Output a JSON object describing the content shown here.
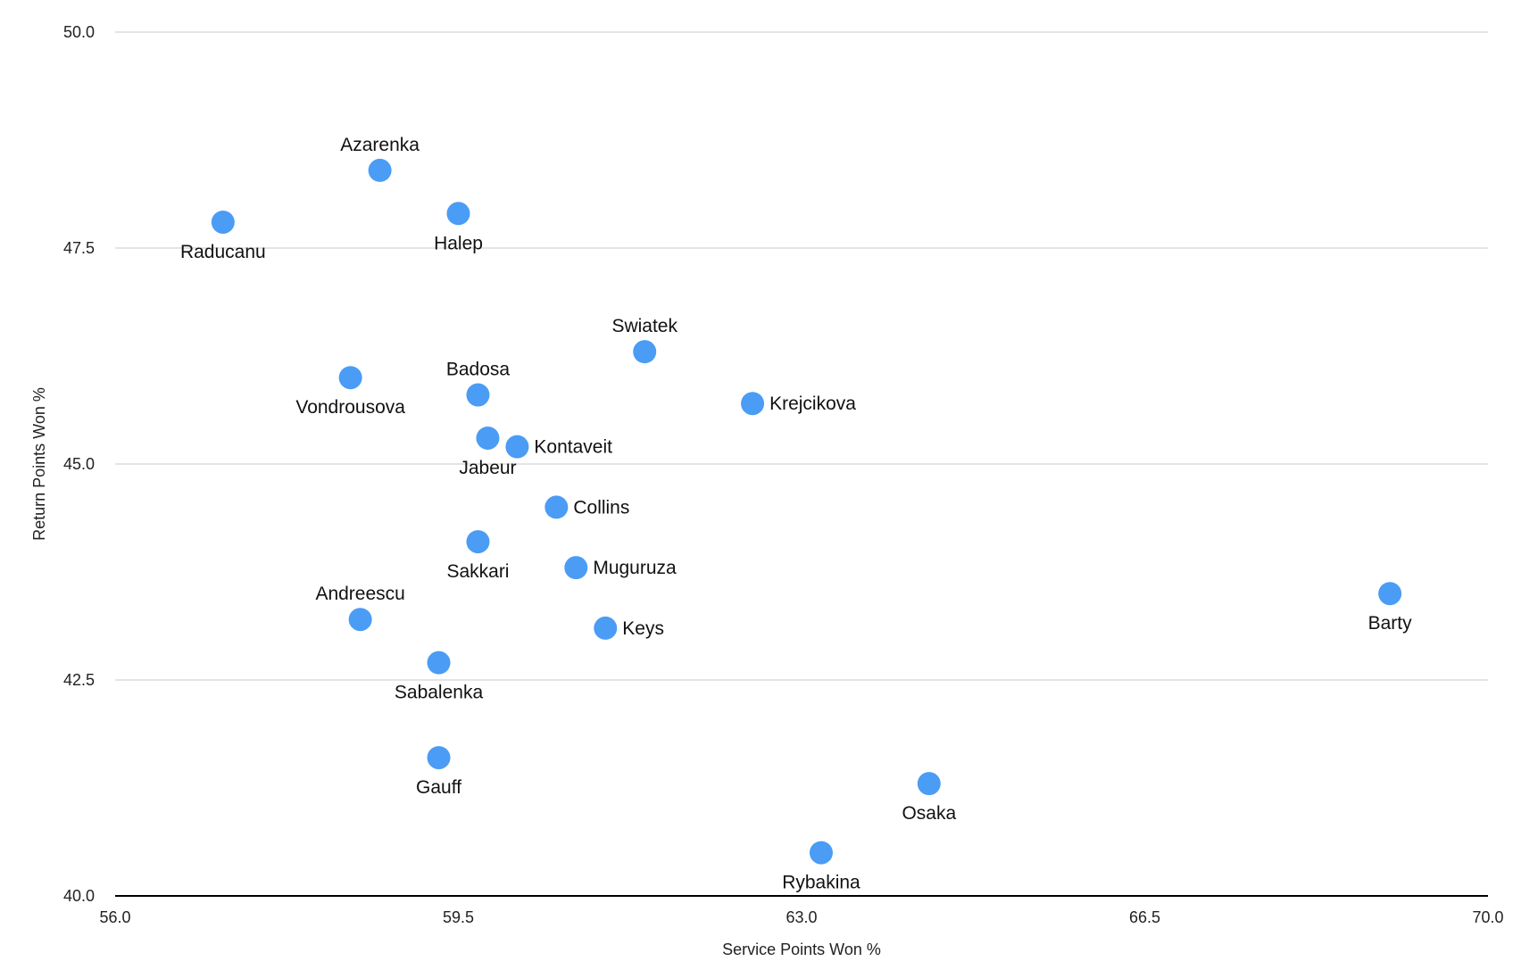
{
  "chart_data": {
    "type": "scatter",
    "xlabel": "Service Points Won %",
    "ylabel": "Return Points Won %",
    "xlim": [
      56.0,
      70.0
    ],
    "ylim": [
      40.0,
      50.0
    ],
    "x_ticks": [
      "56.0",
      "59.5",
      "63.0",
      "66.5",
      "70.0"
    ],
    "y_ticks": [
      "40.0",
      "42.5",
      "45.0",
      "47.5",
      "50.0"
    ],
    "grid": "horizontal",
    "point_color": "#4a9cf5",
    "points": [
      {
        "label": "Azarenka",
        "x": 58.7,
        "y": 48.4,
        "label_pos": "above"
      },
      {
        "label": "Raducanu",
        "x": 57.1,
        "y": 47.8,
        "label_pos": "below"
      },
      {
        "label": "Halep",
        "x": 59.5,
        "y": 47.9,
        "label_pos": "below"
      },
      {
        "label": "Swiatek",
        "x": 61.4,
        "y": 46.3,
        "label_pos": "above"
      },
      {
        "label": "Vondrousova",
        "x": 58.4,
        "y": 46.0,
        "label_pos": "below"
      },
      {
        "label": "Badosa",
        "x": 59.7,
        "y": 45.8,
        "label_pos": "above"
      },
      {
        "label": "Krejcikova",
        "x": 62.5,
        "y": 45.7,
        "label_pos": "right"
      },
      {
        "label": "Jabeur",
        "x": 59.8,
        "y": 45.3,
        "label_pos": "below"
      },
      {
        "label": "Kontaveit",
        "x": 60.1,
        "y": 45.2,
        "label_pos": "right"
      },
      {
        "label": "Collins",
        "x": 60.5,
        "y": 44.5,
        "label_pos": "right"
      },
      {
        "label": "Sakkari",
        "x": 59.7,
        "y": 44.1,
        "label_pos": "below"
      },
      {
        "label": "Muguruza",
        "x": 60.7,
        "y": 43.8,
        "label_pos": "right"
      },
      {
        "label": "Barty",
        "x": 69.0,
        "y": 43.5,
        "label_pos": "below"
      },
      {
        "label": "Andreescu",
        "x": 58.5,
        "y": 43.2,
        "label_pos": "above"
      },
      {
        "label": "Keys",
        "x": 61.0,
        "y": 43.1,
        "label_pos": "right"
      },
      {
        "label": "Sabalenka",
        "x": 59.3,
        "y": 42.7,
        "label_pos": "below"
      },
      {
        "label": "Gauff",
        "x": 59.3,
        "y": 41.6,
        "label_pos": "below"
      },
      {
        "label": "Osaka",
        "x": 64.3,
        "y": 41.3,
        "label_pos": "below"
      },
      {
        "label": "Rybakina",
        "x": 63.2,
        "y": 40.5,
        "label_pos": "below"
      }
    ]
  }
}
